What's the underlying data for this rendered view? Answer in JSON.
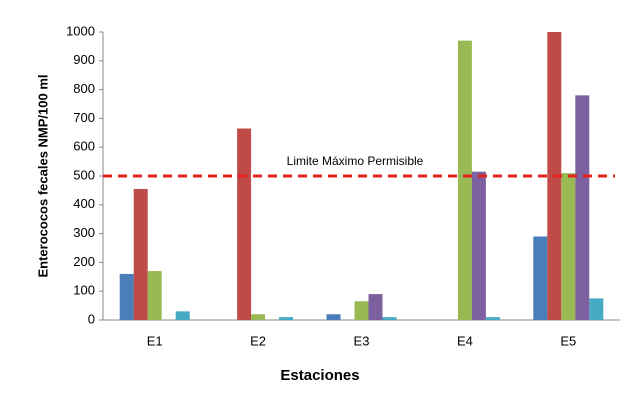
{
  "chart_data": {
    "type": "bar",
    "categories": [
      "E1",
      "E2",
      "E3",
      "E4",
      "E5"
    ],
    "series": [
      {
        "color": "#4a7ebb",
        "values": [
          160,
          0,
          20,
          0,
          290
        ]
      },
      {
        "color": "#be4b48",
        "values": [
          455,
          665,
          0,
          0,
          1000
        ]
      },
      {
        "color": "#98b954",
        "values": [
          170,
          20,
          65,
          970,
          510
        ]
      },
      {
        "color": "#7d60a0",
        "values": [
          0,
          0,
          90,
          515,
          780
        ]
      },
      {
        "color": "#46aac5",
        "values": [
          30,
          10,
          10,
          10,
          75
        ]
      }
    ],
    "x_label": "Estaciones",
    "y_label": "Enterococos fecales NMP/100 ml",
    "ylim": [
      0,
      1000
    ],
    "yticks": [
      0,
      100,
      200,
      300,
      400,
      500,
      600,
      700,
      800,
      900,
      1000
    ],
    "reference_line": {
      "value": 500,
      "label": "Limite Máximo Permisible",
      "color": "#e3201b"
    },
    "grid": false
  }
}
